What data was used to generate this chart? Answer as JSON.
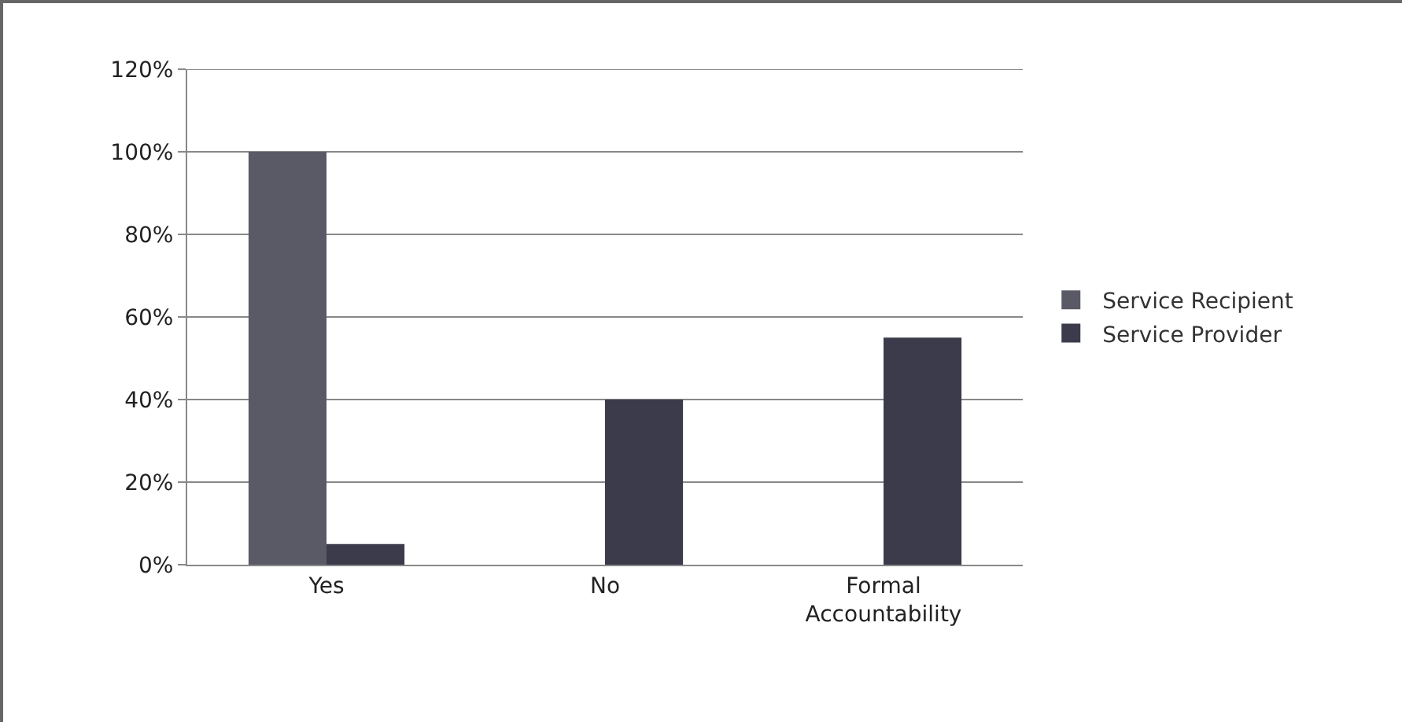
{
  "chart_data": {
    "type": "bar",
    "categories": [
      "Yes",
      "No",
      "Formal Accountability"
    ],
    "series": [
      {
        "name": "Service Recipient",
        "color": "#5a5a66",
        "values": [
          100,
          0,
          0
        ]
      },
      {
        "name": "Service Provider",
        "color": "#3b3b4c",
        "values": [
          5,
          40,
          55
        ]
      }
    ],
    "ylim": [
      0,
      120
    ],
    "yticks": [
      {
        "value": 0,
        "label": "0%"
      },
      {
        "value": 20,
        "label": "20%"
      },
      {
        "value": 40,
        "label": "40%"
      },
      {
        "value": 60,
        "label": "60%"
      },
      {
        "value": 80,
        "label": "80%"
      },
      {
        "value": 100,
        "label": "100%"
      },
      {
        "value": 120,
        "label": "120%"
      }
    ],
    "grid": "y",
    "legend": "right"
  }
}
